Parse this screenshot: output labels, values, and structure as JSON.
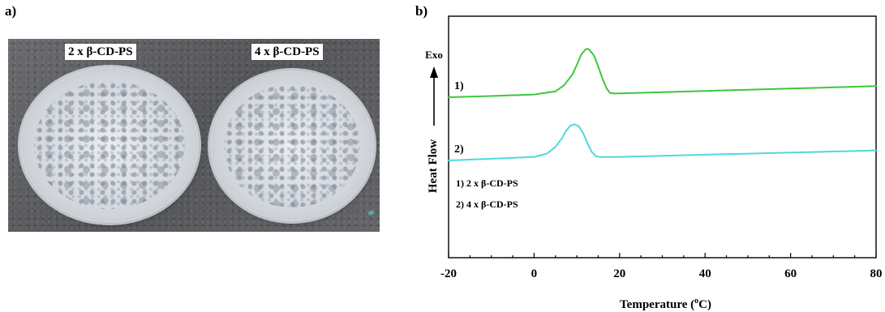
{
  "panel_a": {
    "label": "a)",
    "photo_labels": [
      "2 x β-CD-PS",
      "4 x β-CD-PS"
    ]
  },
  "panel_b": {
    "label": "b)"
  },
  "chart_data": {
    "type": "line",
    "xlabel": "Temperature (°C)",
    "ylabel": "Heat Flow",
    "exo_label": "Exo",
    "xlim": [
      -20,
      80
    ],
    "x_ticks": [
      -20,
      0,
      20,
      40,
      60,
      80
    ],
    "grid": false,
    "legend": [
      "1)  2 x β-CD-PS",
      "2)  4 x β-CD-PS"
    ],
    "series": [
      {
        "name": "2 x β-CD-PS",
        "marker": "1)",
        "color": "#3cc83c",
        "x": [
          -20,
          -10,
          0,
          5,
          7,
          9,
          10,
          11,
          12,
          12.5,
          13,
          14,
          15,
          16,
          17,
          17.8,
          18.5,
          20,
          30,
          40,
          50,
          60,
          70,
          80
        ],
        "y": [
          0.0,
          0.14,
          0.32,
          0.7,
          1.4,
          2.7,
          3.8,
          5.0,
          5.6,
          5.7,
          5.55,
          4.9,
          3.6,
          2.2,
          1.0,
          0.5,
          0.45,
          0.46,
          0.6,
          0.74,
          0.88,
          1.02,
          1.16,
          1.3
        ]
      },
      {
        "name": "4 x β-CD-PS",
        "marker": "2)",
        "color": "#4fd8dc",
        "x": [
          -20,
          -10,
          0,
          3,
          5,
          6.5,
          7.5,
          8.5,
          9.5,
          10.5,
          11.5,
          12.5,
          13.5,
          14.5,
          15.5,
          20,
          30,
          40,
          50,
          60,
          70,
          80
        ],
        "y": [
          0.0,
          0.2,
          0.42,
          0.8,
          1.6,
          2.6,
          3.5,
          4.1,
          4.25,
          4.0,
          3.2,
          2.0,
          1.0,
          0.5,
          0.4,
          0.42,
          0.55,
          0.68,
          0.8,
          0.92,
          1.05,
          1.18
        ]
      }
    ]
  }
}
